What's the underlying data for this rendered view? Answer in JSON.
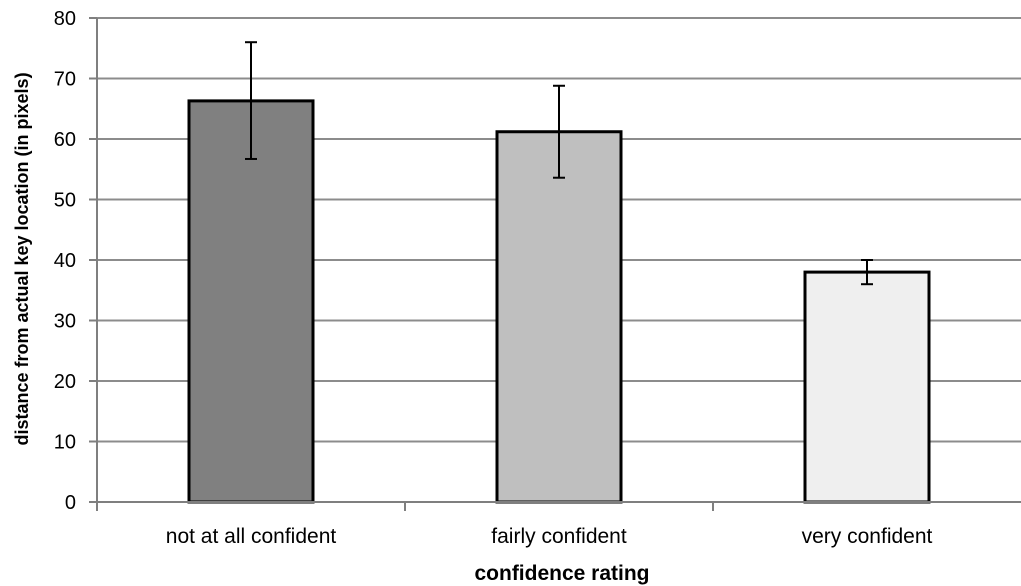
{
  "chart_data": {
    "type": "bar",
    "categories": [
      "not at all confident",
      "fairly confident",
      "very confident"
    ],
    "values": [
      66.3,
      61.2,
      38.0
    ],
    "error_upper": [
      76.0,
      68.8,
      40.0
    ],
    "error_lower": [
      56.7,
      53.6,
      36.0
    ],
    "bar_colors": [
      "#808080",
      "#bfbfbf",
      "#efefef"
    ],
    "xlabel": "confidence rating",
    "ylabel": "distance from actual key location (in pixels)",
    "ylim": [
      0,
      80
    ],
    "yticks": [
      "0",
      "10",
      "20",
      "30",
      "40",
      "50",
      "60",
      "70",
      "80"
    ],
    "grid": true,
    "legend": "none"
  }
}
